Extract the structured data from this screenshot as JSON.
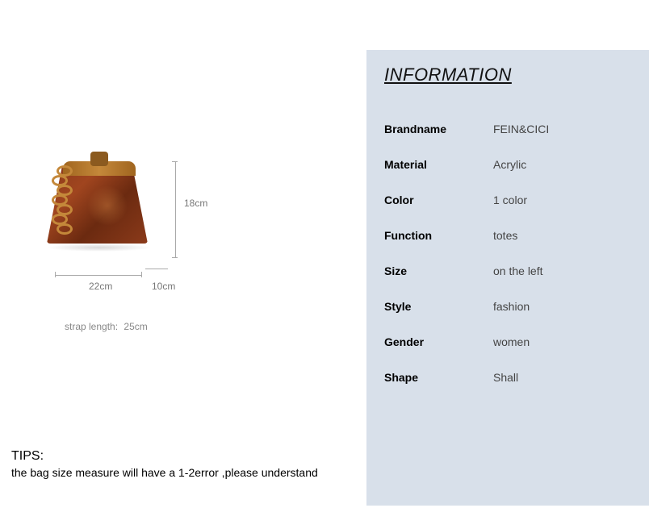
{
  "product": {
    "dimensions": {
      "height": "18cm",
      "width": "22cm",
      "depth": "10cm",
      "strap_label": "strap length:",
      "strap_value": "25cm"
    },
    "image_style": {
      "bag_color_primary": "#8b3a1a",
      "bag_color_secondary": "#a0451f",
      "bag_color_dark": "#6b2a10",
      "clasp_color": "#c4883a",
      "chain_color": "#c4883a"
    }
  },
  "tips": {
    "title": "TIPS:",
    "text": "the bag size measure will have a 1-2error ,please understand"
  },
  "info": {
    "header": "INFORMATION",
    "panel_bg": "#d8e0ea",
    "rows": [
      {
        "label": "Brandname",
        "value": "FEIN&CICI"
      },
      {
        "label": "Material",
        "value": "Acrylic"
      },
      {
        "label": "Color",
        "value": "1 color"
      },
      {
        "label": "Function",
        "value": "totes"
      },
      {
        "label": "Size",
        "value": "on the left"
      },
      {
        "label": "Style",
        "value": "fashion"
      },
      {
        "label": "Gender",
        "value": "women"
      },
      {
        "label": "Shape",
        "value": "Shall"
      }
    ]
  }
}
